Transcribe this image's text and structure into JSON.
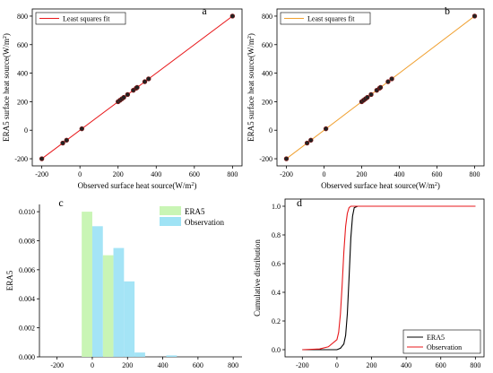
{
  "chart_data": [
    {
      "panel": "a",
      "type": "scatter",
      "xlabel": "Observed surface heat source(W/m",
      "xlabel_sup": "2",
      "xlabel_tail": ")",
      "ylabel": "ERA5 surface heat source(W/m",
      "ylabel_sup": "2",
      "ylabel_tail": ")",
      "xlim": [
        -250,
        850
      ],
      "ylim": [
        -250,
        850
      ],
      "xticks": [
        -200,
        0,
        200,
        400,
        600,
        800
      ],
      "yticks": [
        -200,
        0,
        200,
        400,
        600,
        800
      ],
      "legend": [
        "Least squares fit"
      ],
      "legend_position": "top-left",
      "fit_color": "#e8191c",
      "fit_line": [
        [
          -200,
          -200
        ],
        [
          800,
          800
        ]
      ],
      "points": [
        [
          -200,
          -200
        ],
        [
          -90,
          -90
        ],
        [
          -70,
          -70
        ],
        [
          10,
          10
        ],
        [
          200,
          200
        ],
        [
          210,
          210
        ],
        [
          220,
          220
        ],
        [
          230,
          230
        ],
        [
          250,
          250
        ],
        [
          280,
          280
        ],
        [
          295,
          295
        ],
        [
          300,
          300
        ],
        [
          340,
          340
        ],
        [
          360,
          360
        ],
        [
          800,
          800
        ]
      ]
    },
    {
      "panel": "b",
      "type": "scatter",
      "xlabel": "Observed surface heat source(W/m",
      "xlabel_sup": "2",
      "xlabel_tail": ")",
      "ylabel": "ERA5 surface heat source(W/m",
      "ylabel_sup": "2",
      "ylabel_tail": ")",
      "xlim": [
        -250,
        850
      ],
      "ylim": [
        -250,
        850
      ],
      "xticks": [
        -200,
        0,
        200,
        400,
        600,
        800
      ],
      "yticks": [
        -200,
        0,
        200,
        400,
        600,
        800
      ],
      "legend": [
        "Least squares fit"
      ],
      "legend_position": "top-left",
      "fit_color": "#f0a030",
      "fit_line": [
        [
          -200,
          -200
        ],
        [
          800,
          800
        ]
      ],
      "points": [
        [
          -200,
          -200
        ],
        [
          -90,
          -90
        ],
        [
          -70,
          -70
        ],
        [
          10,
          10
        ],
        [
          200,
          200
        ],
        [
          210,
          210
        ],
        [
          220,
          220
        ],
        [
          230,
          230
        ],
        [
          250,
          250
        ],
        [
          280,
          280
        ],
        [
          295,
          295
        ],
        [
          300,
          300
        ],
        [
          340,
          340
        ],
        [
          360,
          360
        ],
        [
          800,
          800
        ]
      ]
    },
    {
      "panel": "c",
      "type": "bar",
      "ylabel": "ERA5",
      "xlim": [
        -300,
        850
      ],
      "ylim": [
        0,
        0.0105
      ],
      "xticks": [
        -200,
        0,
        200,
        400,
        600,
        800
      ],
      "yticks": [
        "0.000",
        "0.002",
        "0.004",
        "0.006",
        "0.008",
        "0.010"
      ],
      "legend_position": "top-right",
      "series": [
        {
          "name": "ERA5",
          "color": "#c9f5b5",
          "bin_width": 60,
          "x": [
            -30,
            90
          ],
          "values": [
            0.01,
            0.007
          ]
        },
        {
          "name": "Observation",
          "color": "#9fe3f5",
          "bin_width": 60,
          "x": [
            30,
            150,
            210,
            270,
            450
          ],
          "values": [
            0.009,
            0.0075,
            0.0052,
            0.0003,
            0.0001
          ]
        }
      ]
    },
    {
      "panel": "d",
      "type": "line",
      "ylabel": "Cumulative distribution",
      "xlim": [
        -300,
        850
      ],
      "ylim": [
        -0.05,
        1.05
      ],
      "xticks": [
        -200,
        0,
        200,
        400,
        600,
        800
      ],
      "yticks": [
        "0.0",
        "0.2",
        "0.4",
        "0.6",
        "0.8",
        "1.0"
      ],
      "legend_position": "bottom-right",
      "series": [
        {
          "name": "ERA5",
          "color": "#000000",
          "x": [
            -200,
            0,
            20,
            40,
            50,
            60,
            70,
            80,
            90,
            100,
            120,
            800
          ],
          "values": [
            0,
            0,
            0.01,
            0.04,
            0.1,
            0.25,
            0.5,
            0.78,
            0.93,
            0.99,
            1.0,
            1.0
          ]
        },
        {
          "name": "Observation",
          "color": "#e8191c",
          "x": [
            -200,
            -100,
            -50,
            0,
            10,
            20,
            30,
            40,
            50,
            60,
            70,
            80,
            800
          ],
          "values": [
            0,
            0.005,
            0.02,
            0.07,
            0.12,
            0.25,
            0.45,
            0.68,
            0.86,
            0.95,
            0.99,
            1.0,
            1.0
          ]
        }
      ]
    }
  ]
}
